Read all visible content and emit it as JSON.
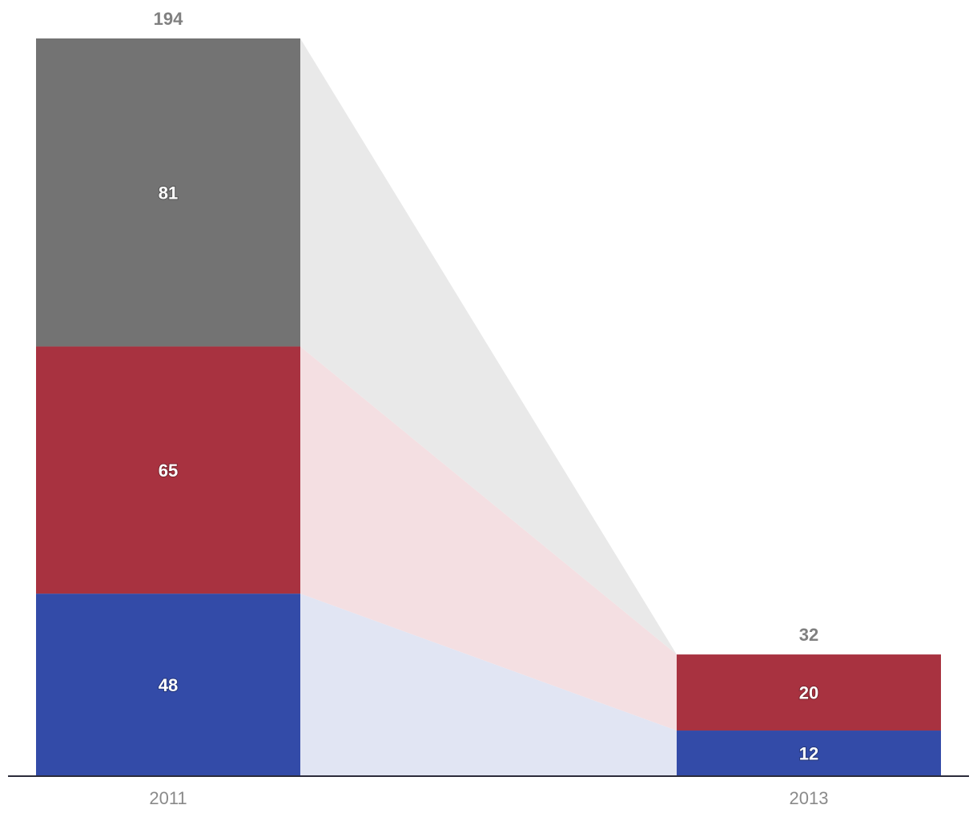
{
  "chart_data": {
    "type": "bar",
    "stacked": true,
    "categories": [
      "2011",
      "2013"
    ],
    "series": [
      {
        "values": [
          48,
          12
        ],
        "color": "#334ba8",
        "connector_color": "#e1e5f3"
      },
      {
        "values": [
          65,
          20
        ],
        "color": "#a83240",
        "connector_color": "#f4dfe2"
      },
      {
        "values": [
          81,
          0
        ],
        "color": "#737373",
        "connector_color": "#e9e9e9"
      }
    ],
    "totals": [
      194,
      32
    ],
    "xlabel": "",
    "ylabel": "",
    "ylim": [
      0,
      194
    ],
    "grid": false,
    "legend": "none",
    "connectors": true
  }
}
